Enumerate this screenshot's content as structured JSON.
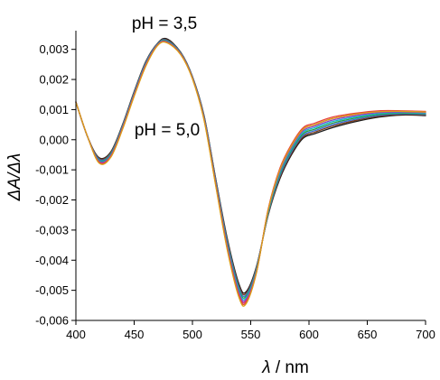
{
  "chart_data": {
    "type": "line",
    "title": "",
    "xlabel": "λ / nm",
    "xlabel_symbol": "λ",
    "xlabel_unit": " / nm",
    "ylabel": "ΔA/Δλ",
    "xlim": [
      400,
      700
    ],
    "ylim": [
      -0.006,
      0.0035
    ],
    "x_ticks": [
      400,
      450,
      500,
      550,
      600,
      650,
      700
    ],
    "x_tick_labels": [
      "400",
      "450",
      "500",
      "550",
      "600",
      "650",
      "700"
    ],
    "y_ticks": [
      -0.006,
      -0.005,
      -0.004,
      -0.003,
      -0.002,
      -0.001,
      0.0,
      0.001,
      0.002,
      0.003
    ],
    "y_tick_labels": [
      "-0,006",
      "-0,005",
      "-0,004",
      "-0,003",
      "-0,002",
      "-0,001",
      "0,000",
      "0,001",
      "0,002",
      "0,003"
    ],
    "grid": false,
    "annotations": [
      {
        "text": "pH = 3,5",
        "x": 478,
        "y": 0.0035
      },
      {
        "text": "pH = 5,0",
        "x": 470,
        "y": 0.00035
      }
    ],
    "x": [
      400,
      410,
      420,
      430,
      440,
      450,
      460,
      470,
      478,
      490,
      500,
      510,
      520,
      530,
      540,
      546,
      555,
      565,
      575,
      585,
      595,
      605,
      620,
      640,
      660,
      680,
      700
    ],
    "series": [
      {
        "color": "#1a1a1a",
        "values": [
          0.00125,
          0.0001,
          -0.0006,
          -0.0004,
          0.0005,
          0.0016,
          0.0026,
          0.0032,
          0.00335,
          0.0029,
          0.0021,
          0.0008,
          -0.0013,
          -0.0033,
          -0.0048,
          -0.00505,
          -0.0042,
          -0.0025,
          -0.0013,
          -0.0005,
          5e-05,
          0.0002,
          0.0004,
          0.0006,
          0.00075,
          0.00082,
          0.0008
        ]
      },
      {
        "color": "#7a3b1b",
        "values": [
          0.00125,
          0.0001,
          -0.00062,
          -0.00042,
          0.00048,
          0.00158,
          0.00258,
          0.00319,
          0.00332,
          0.00289,
          0.00209,
          0.00078,
          -0.00133,
          -0.00335,
          -0.00486,
          -0.0051,
          -0.00423,
          -0.00248,
          -0.00125,
          -0.00045,
          0.0001,
          0.00025,
          0.00045,
          0.00064,
          0.00078,
          0.00084,
          0.00082
        ]
      },
      {
        "color": "#3a6fd8",
        "values": [
          0.00125,
          0.0001,
          -0.00065,
          -0.00045,
          0.00046,
          0.00156,
          0.00256,
          0.00318,
          0.0033,
          0.00288,
          0.00208,
          0.00076,
          -0.00136,
          -0.0034,
          -0.00492,
          -0.00515,
          -0.00426,
          -0.00245,
          -0.0012,
          -0.0004,
          0.00015,
          0.0003,
          0.0005,
          0.00068,
          0.00081,
          0.00086,
          0.00084
        ]
      },
      {
        "color": "#2a9d4a",
        "values": [
          0.00125,
          0.0001,
          -0.00068,
          -0.00047,
          0.00044,
          0.00154,
          0.00254,
          0.00317,
          0.00328,
          0.00287,
          0.00207,
          0.00074,
          -0.00139,
          -0.00345,
          -0.00498,
          -0.0052,
          -0.00429,
          -0.00242,
          -0.00115,
          -0.00035,
          0.0002,
          0.00035,
          0.00055,
          0.00072,
          0.00084,
          0.00088,
          0.00086
        ]
      },
      {
        "color": "#16b8c9",
        "values": [
          0.00125,
          0.0001,
          -0.0007,
          -0.0005,
          0.00042,
          0.00152,
          0.00252,
          0.00316,
          0.00326,
          0.00286,
          0.00206,
          0.00072,
          -0.00142,
          -0.0035,
          -0.00504,
          -0.00525,
          -0.00432,
          -0.00238,
          -0.0011,
          -0.0003,
          0.00025,
          0.0004,
          0.0006,
          0.00076,
          0.00087,
          0.0009,
          0.00088
        ]
      },
      {
        "color": "#8a44c6",
        "values": [
          0.00125,
          0.0001,
          -0.00072,
          -0.00052,
          0.0004,
          0.0015,
          0.0025,
          0.00315,
          0.00325,
          0.00285,
          0.00205,
          0.0007,
          -0.00145,
          -0.00355,
          -0.0051,
          -0.0053,
          -0.00435,
          -0.00235,
          -0.00105,
          -0.00025,
          0.0003,
          0.00045,
          0.00065,
          0.0008,
          0.0009,
          0.00092,
          0.0009
        ]
      },
      {
        "color": "#c9357a",
        "values": [
          0.00125,
          0.0001,
          -0.00074,
          -0.00054,
          0.00038,
          0.00148,
          0.00248,
          0.00314,
          0.00324,
          0.00284,
          0.00204,
          0.00068,
          -0.00148,
          -0.0036,
          -0.00515,
          -0.00535,
          -0.00438,
          -0.00232,
          -0.001,
          -0.0002,
          0.00035,
          0.0005,
          0.0007,
          0.00084,
          0.00093,
          0.00094,
          0.00092
        ]
      },
      {
        "color": "#e8433a",
        "values": [
          0.00125,
          0.0001,
          -0.00076,
          -0.00056,
          0.00036,
          0.00146,
          0.00246,
          0.00313,
          0.00323,
          0.00283,
          0.00203,
          0.00066,
          -0.00151,
          -0.00365,
          -0.0052,
          -0.0054,
          -0.0044,
          -0.0023,
          -0.00095,
          -0.00015,
          0.0004,
          0.00055,
          0.00075,
          0.00088,
          0.00096,
          0.00096,
          0.00094
        ]
      },
      {
        "color": "#d9a019",
        "values": [
          0.00125,
          0.0001,
          -0.00078,
          -0.00058,
          0.00034,
          0.00144,
          0.00244,
          0.00312,
          0.00322,
          0.00282,
          0.00202,
          0.00064,
          -0.00154,
          -0.00368,
          -0.00525,
          -0.00545,
          -0.0044,
          -0.00233,
          -0.001,
          -0.0002,
          0.00035,
          0.0005,
          0.0007,
          0.00085,
          0.00093,
          0.00094,
          0.00092
        ]
      }
    ]
  }
}
